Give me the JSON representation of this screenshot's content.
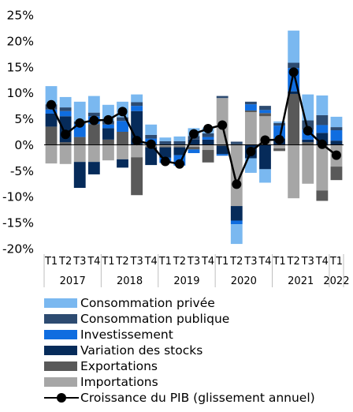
{
  "chart_data": {
    "type": "bar",
    "stacked": true,
    "ylim": [
      -20,
      25
    ],
    "yticks": [
      -20,
      -15,
      -10,
      -5,
      0,
      5,
      10,
      15,
      20,
      25
    ],
    "ytick_labels": [
      "-20%",
      "-15%",
      "-10%",
      "-5%",
      "0%",
      "5%",
      "10%",
      "15%",
      "20%",
      "25%"
    ],
    "grid": false,
    "legend_position": "bottom",
    "categories": [
      "T1",
      "T2",
      "T3",
      "T4",
      "T1",
      "T2",
      "T3",
      "T4",
      "T1",
      "T2",
      "T3",
      "T4",
      "T1",
      "T2",
      "T3",
      "T4",
      "T1",
      "T2",
      "T3",
      "T4",
      "T1"
    ],
    "years": [
      {
        "label": "2017",
        "span": 4
      },
      {
        "label": "2018",
        "span": 4
      },
      {
        "label": "2019",
        "span": 4
      },
      {
        "label": "2020",
        "span": 4
      },
      {
        "label": "2021",
        "span": 4
      },
      {
        "label": "2022",
        "span": 1
      }
    ],
    "series": [
      {
        "name": "Importations",
        "color": "#a6a6a6",
        "values": [
          -3.6,
          -3.7,
          -3.3,
          -3.3,
          -3.0,
          -2.8,
          -2.4,
          -0.3,
          -0.3,
          -0.3,
          -0.4,
          -1.0,
          9.0,
          -11.8,
          6.3,
          5.5,
          -0.7,
          -10.3,
          -7.5,
          -8.8,
          -4.2
        ]
      },
      {
        "name": "Exportations",
        "color": "#595959",
        "values": [
          3.5,
          0.5,
          1.5,
          4.0,
          1.0,
          2.5,
          -7.3,
          -0.2,
          -0.2,
          -0.2,
          -0.5,
          -2.4,
          -0.2,
          0.1,
          0.3,
          0.6,
          -0.5,
          9.8,
          0.5,
          -2.0,
          -2.6
        ]
      },
      {
        "name": "Variation des stocks",
        "color": "#062b5a",
        "values": [
          2.5,
          5.0,
          -5.0,
          -2.4,
          2.2,
          -1.6,
          6.5,
          -3.4,
          -2.0,
          -1.5,
          1.0,
          1.0,
          -1.6,
          -2.8,
          -2.6,
          -4.7,
          1.2,
          0.5,
          0.5,
          2.3,
          0.8
        ]
      },
      {
        "name": "Investissement",
        "color": "#0f6de0",
        "values": [
          0.8,
          1.0,
          2.5,
          1.5,
          0.7,
          2.1,
          1.0,
          1.2,
          -1.0,
          -2.0,
          -0.7,
          0.5,
          -0.3,
          -0.7,
          1.2,
          0.6,
          2.5,
          4.5,
          1.9,
          1.5,
          2.0
        ]
      },
      {
        "name": "Consommation publique",
        "color": "#2d4b71",
        "values": [
          1.0,
          0.7,
          0.5,
          0.7,
          0.7,
          0.7,
          0.7,
          0.7,
          0.7,
          0.7,
          0.7,
          0.7,
          0.4,
          0.5,
          0.5,
          0.8,
          0.5,
          1.0,
          1.8,
          1.9,
          0.6
        ]
      },
      {
        "name": "Consommation privée",
        "color": "#7ab8f0",
        "values": [
          3.5,
          2.0,
          3.8,
          3.2,
          3.1,
          3.0,
          1.5,
          2.0,
          0.7,
          0.9,
          1.5,
          1.1,
          0.0,
          -3.8,
          -2.8,
          -2.6,
          0.3,
          6.2,
          5.0,
          3.8,
          2.0
        ]
      }
    ],
    "line": {
      "name": "Croissance du PIB (glissement annuel)",
      "color": "#000000",
      "values": [
        7.7,
        2.0,
        4.2,
        4.7,
        4.8,
        6.4,
        0.8,
        0.1,
        -3.2,
        -3.7,
        2.1,
        3.1,
        3.8,
        -7.6,
        -1.3,
        0.9,
        1.0,
        14.0,
        2.7,
        0.1,
        -2.0
      ]
    }
  },
  "legend": [
    {
      "label": "Consommation privée",
      "color": "#7ab8f0"
    },
    {
      "label": "Consommation publique",
      "color": "#2d4b71"
    },
    {
      "label": "Investissement",
      "color": "#0f6de0"
    },
    {
      "label": "Variation des stocks",
      "color": "#062b5a"
    },
    {
      "label": "Exportations",
      "color": "#595959"
    },
    {
      "label": "Importations",
      "color": "#a6a6a6"
    },
    {
      "label": "Croissance du PIB (glissement annuel)",
      "color": "#000000"
    }
  ]
}
